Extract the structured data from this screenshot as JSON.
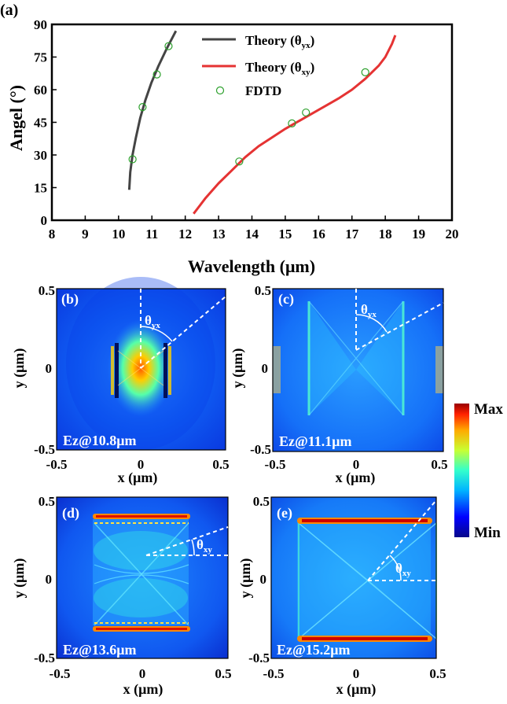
{
  "chart_data": [
    {
      "panel": "(a)",
      "type": "line",
      "xlabel": "Wavelength (μm)",
      "ylabel": "Angel (°)",
      "xlim": [
        8,
        20
      ],
      "ylim": [
        0,
        90
      ],
      "xticks": [
        8,
        9,
        10,
        11,
        12,
        13,
        14,
        15,
        16,
        17,
        18,
        19,
        20
      ],
      "yticks": [
        0,
        15,
        30,
        45,
        60,
        75,
        90
      ],
      "legend_position": "top-right",
      "series": [
        {
          "name": "Theory (θyx)",
          "name_main": "Theory (θ",
          "name_sub": "yx",
          "name_end": ")",
          "kind": "line",
          "color": "#444444",
          "x": [
            10.32,
            10.35,
            10.42,
            10.52,
            10.65,
            10.8,
            10.98,
            11.2,
            11.45,
            11.72
          ],
          "y": [
            14,
            22,
            30,
            38,
            47,
            55,
            63,
            71,
            79,
            87
          ]
        },
        {
          "name": "Theory (θxy)",
          "name_main": "Theory (θ",
          "name_sub": "xy",
          "name_end": ")",
          "kind": "line",
          "color": "#e53333",
          "x": [
            12.25,
            12.6,
            13.0,
            13.4,
            13.8,
            14.2,
            14.6,
            15.0,
            15.4,
            15.8,
            16.2,
            16.6,
            17.0,
            17.4,
            17.8,
            18.0,
            18.2,
            18.3
          ],
          "y": [
            3,
            10,
            17,
            23,
            29,
            34,
            38,
            42,
            45.5,
            49,
            52.5,
            56,
            60,
            65,
            71,
            75,
            81,
            85
          ]
        },
        {
          "name": "FDTD",
          "kind": "scatter",
          "color": "#2ca02c",
          "x": [
            10.42,
            10.72,
            11.15,
            11.5,
            13.62,
            15.2,
            15.62,
            17.4
          ],
          "y": [
            28,
            52,
            67,
            80,
            27,
            44.5,
            49.5,
            68
          ]
        }
      ]
    },
    {
      "panel": "(b)",
      "type": "heatmap",
      "field": "Ez@10.8μm",
      "xlabel": "x (μm)",
      "ylabel": "y (μm)",
      "xlim": [
        -0.5,
        0.5
      ],
      "ylim": [
        -0.5,
        0.5
      ],
      "xticks": [
        "-0.5",
        "0",
        "0.5"
      ],
      "yticks": [
        "-0.5",
        "0",
        "0.5"
      ],
      "angle_label": "θ",
      "angle_sub": "yx"
    },
    {
      "panel": "(c)",
      "type": "heatmap",
      "field": "Ez@11.1μm",
      "xlabel": "x (μm)",
      "ylabel": "y (μm)",
      "xlim": [
        -0.5,
        0.5
      ],
      "ylim": [
        -0.5,
        0.5
      ],
      "xticks": [
        "-0.5",
        "0",
        "0.5"
      ],
      "yticks": [
        "-0.5",
        "0",
        "0.5"
      ],
      "angle_label": "θ",
      "angle_sub": "yx"
    },
    {
      "panel": "(d)",
      "type": "heatmap",
      "field": "Ez@13.6μm",
      "xlabel": "x (μm)",
      "ylabel": "y (μm)",
      "xlim": [
        -0.5,
        0.5
      ],
      "ylim": [
        -0.5,
        0.5
      ],
      "xticks": [
        "-0.5",
        "0",
        "0.5"
      ],
      "yticks": [
        "-0.5",
        "0",
        "0.5"
      ],
      "angle_label": "θ",
      "angle_sub": "xy"
    },
    {
      "panel": "(e)",
      "type": "heatmap",
      "field": "Ez@15.2μm",
      "xlabel": "x (μm)",
      "ylabel": "y (μm)",
      "xlim": [
        -0.5,
        0.5
      ],
      "ylim": [
        -0.5,
        0.5
      ],
      "xticks": [
        "-0.5",
        "0",
        "0.5"
      ],
      "yticks": [
        "-0.5",
        "0",
        "0.5"
      ],
      "angle_label": "θ",
      "angle_sub": "xy"
    }
  ],
  "colorbar": {
    "max_label": "Max",
    "min_label": "Min"
  }
}
